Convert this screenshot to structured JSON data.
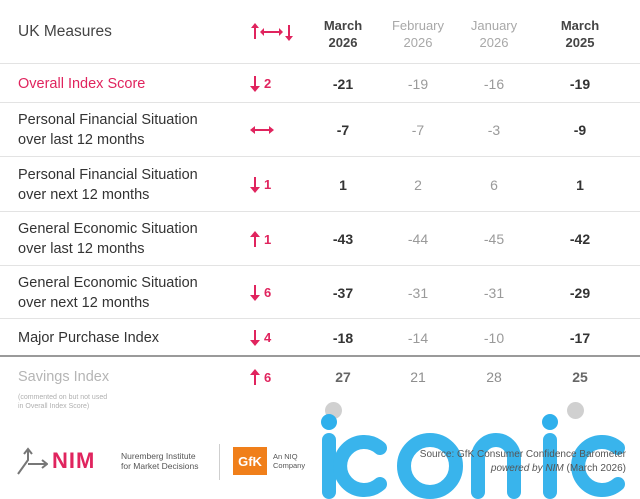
{
  "header": {
    "title": "UK Measures",
    "change_icon": "up-down-arrows-icon",
    "columns": [
      {
        "month": "March",
        "year": "2026",
        "emphasis": "bold"
      },
      {
        "month": "February",
        "year": "2026",
        "emphasis": "light"
      },
      {
        "month": "January",
        "year": "2026",
        "emphasis": "light"
      },
      {
        "month": "March",
        "year": "2025",
        "emphasis": "bold"
      }
    ]
  },
  "rows": [
    {
      "label": "Overall Index Score",
      "change_dir": "down",
      "change": "2",
      "values": [
        "-21",
        "-19",
        "-16",
        "-19"
      ]
    },
    {
      "label1": "Personal Financial Situation",
      "label2": "over last 12 months",
      "change_dir": "none",
      "change": "",
      "values": [
        "-7",
        "-7",
        "-3",
        "-9"
      ]
    },
    {
      "label1": "Personal Financial Situation",
      "label2": "over next 12 months",
      "change_dir": "down",
      "change": "1",
      "values": [
        "1",
        "2",
        "6",
        "1"
      ]
    },
    {
      "label1": "General Economic Situation",
      "label2": "over last 12 months",
      "change_dir": "up",
      "change": "1",
      "values": [
        "-43",
        "-44",
        "-45",
        "-42"
      ]
    },
    {
      "label1": "General Economic Situation",
      "label2": "over next 12 months",
      "change_dir": "down",
      "change": "6",
      "values": [
        "-37",
        "-31",
        "-31",
        "-29"
      ]
    },
    {
      "label": "Major Purchase Index",
      "change_dir": "down",
      "change": "4",
      "values": [
        "-18",
        "-14",
        "-10",
        "-17"
      ]
    }
  ],
  "savings": {
    "label": "Savings Index",
    "note1": "(commented on but not used",
    "note2": "in Overall Index Score)",
    "change_dir": "up",
    "change": "6",
    "values": [
      "27",
      "21",
      "28",
      "25"
    ]
  },
  "footer": {
    "nim_logo": "NIM",
    "nim_line1": "Nuremberg Institute",
    "nim_line2": "for Market Decisions",
    "gfk_logo": "GfK",
    "gfk_line1": "An NIQ",
    "gfk_line2": "Company",
    "source_line1": "Source: GfK Consumer Confidence Barometer",
    "source_powered": "powered by ",
    "source_nim": "NIM",
    "source_date": " (March 2026)"
  },
  "watermark": "iconic",
  "colors": {
    "accent": "#e0245e",
    "gfk": "#f07f1a",
    "watermark": "#2fb0ec"
  }
}
